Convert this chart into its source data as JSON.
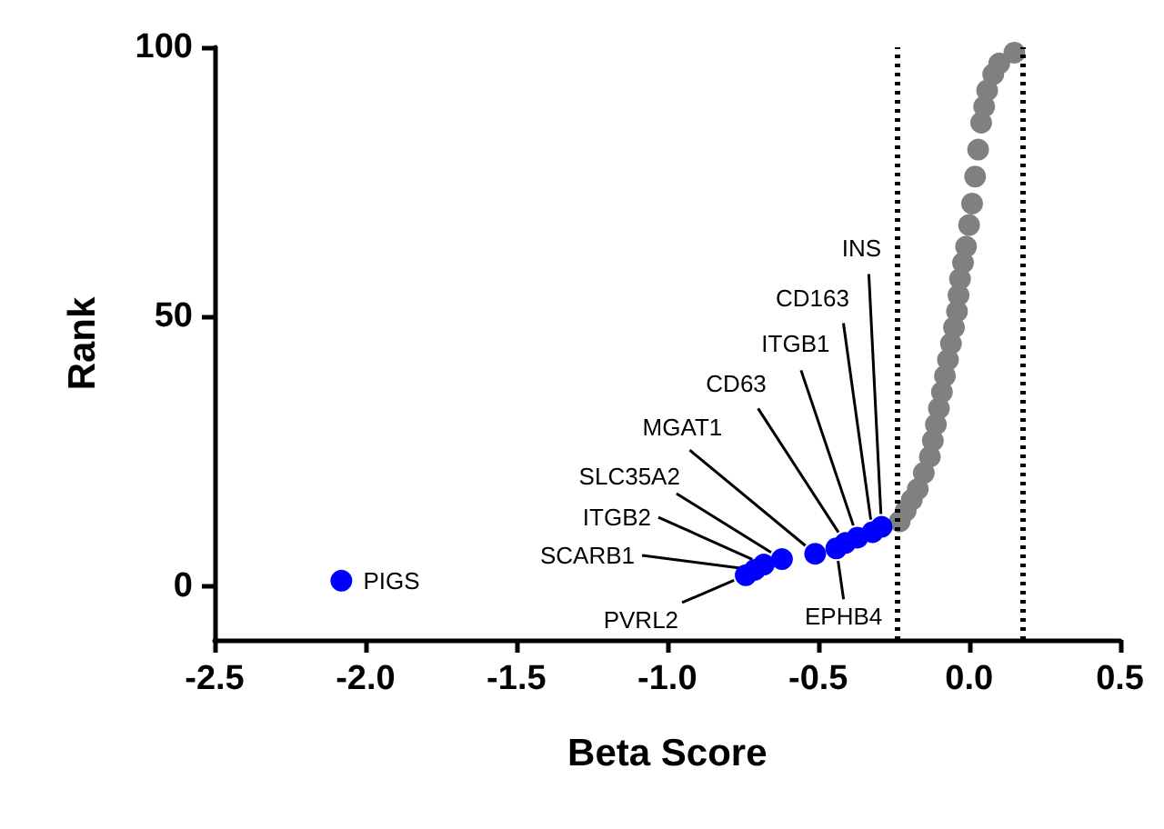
{
  "chart_data": {
    "type": "scatter",
    "xlabel": "Beta Score",
    "ylabel": "Rank",
    "xlim": [
      -2.5,
      0.5
    ],
    "xticks": [
      -2.5,
      {
        "value": -2,
        "label": "-2.0"
      },
      -1.5,
      {
        "value": -1,
        "label": "-1.0"
      },
      -0.5,
      {
        "value": 0,
        "label": "0.0"
      },
      0.5
    ],
    "ylim": [
      -10,
      100
    ],
    "yticks": [
      0,
      50,
      100
    ],
    "grid": false,
    "marker": "circle",
    "series": [
      {
        "color": "#808080",
        "x": [
          -0.23,
          -0.21,
          -0.19,
          -0.17,
          -0.15,
          -0.13,
          -0.12,
          -0.11,
          -0.1,
          -0.09,
          -0.08,
          -0.07,
          -0.06,
          -0.05,
          -0.04,
          -0.035,
          -0.03,
          -0.02,
          -0.01,
          0.0,
          0.01,
          0.02,
          0.03,
          0.04,
          0.05,
          0.06,
          0.08,
          0.1,
          0.15
        ],
        "values": [
          12,
          14,
          16,
          18,
          21,
          24,
          27,
          30,
          33,
          36,
          39,
          42,
          45,
          48,
          51,
          54,
          57,
          60,
          63,
          67,
          71,
          76,
          81,
          86,
          89,
          92,
          95,
          97,
          99
        ]
      },
      {
        "color": "#0000ff",
        "x": [
          -2.08,
          -0.74,
          -0.71,
          -0.68,
          -0.62,
          -0.51,
          -0.44,
          -0.41,
          -0.37,
          -0.32,
          -0.29
        ],
        "values": [
          1,
          2,
          3,
          4,
          5,
          6,
          7,
          8,
          9,
          10,
          11
        ]
      }
    ],
    "ref_lines": [
      {
        "axis": "x",
        "value": -0.24,
        "color": "#000000",
        "line_style": "dotted"
      },
      {
        "axis": "x",
        "value": 0.18,
        "color": "#000000",
        "line_style": "dotted"
      }
    ],
    "annotations": [
      {
        "text": "PIGS",
        "x": -2.08,
        "y": 1
      },
      {
        "text": "PVRL2",
        "x": -0.74,
        "y": 2
      },
      {
        "text": "SCARB1",
        "x": -0.71,
        "y": 3
      },
      {
        "text": "ITGB2",
        "x": -0.68,
        "y": 4
      },
      {
        "text": "SLC35A2",
        "x": -0.62,
        "y": 5
      },
      {
        "text": "MGAT1",
        "x": -0.51,
        "y": 6
      },
      {
        "text": "EPHB4",
        "x": -0.44,
        "y": 7
      },
      {
        "text": "CD63",
        "x": -0.41,
        "y": 8
      },
      {
        "text": "ITGB1",
        "x": -0.37,
        "y": 9
      },
      {
        "text": "CD163",
        "x": -0.32,
        "y": 10
      },
      {
        "text": "INS",
        "x": -0.29,
        "y": 11
      }
    ]
  }
}
